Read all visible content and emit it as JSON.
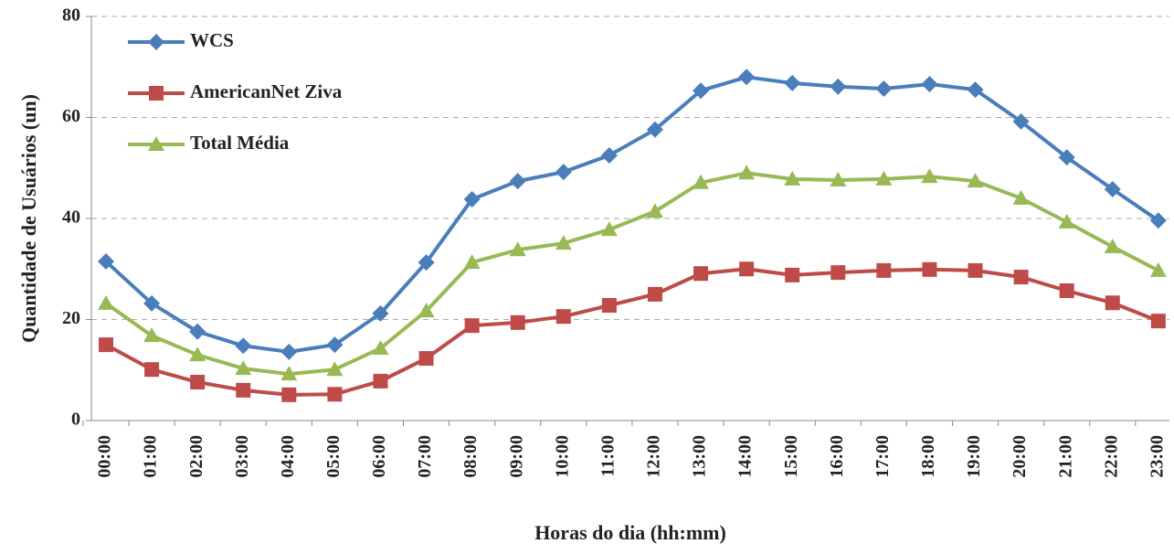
{
  "chart_data": {
    "type": "line",
    "xlabel": "Horas do dia (hh:mm)",
    "ylabel": "Quantidade de Usuários (un)",
    "categories": [
      "00:00",
      "01:00",
      "02:00",
      "03:00",
      "04:00",
      "05:00",
      "06:00",
      "07:00",
      "08:00",
      "09:00",
      "10:00",
      "11:00",
      "12:00",
      "13:00",
      "14:00",
      "15:00",
      "16:00",
      "17:00",
      "18:00",
      "19:00",
      "20:00",
      "21:00",
      "22:00",
      "23:00"
    ],
    "series": [
      {
        "name": "WCS",
        "color": "#4a7ebb",
        "marker": "diamond",
        "values": [
          31.5,
          23.2,
          17.6,
          14.8,
          13.6,
          15,
          21.2,
          31.3,
          43.8,
          47.4,
          49.2,
          52.5,
          57.6,
          65.3,
          68,
          66.8,
          66.1,
          65.7,
          66.6,
          65.5,
          59.2,
          52.1,
          45.8,
          39.6
        ]
      },
      {
        "name": "AmericanNet Ziva",
        "color": "#be4b48",
        "marker": "square",
        "values": [
          15,
          10.1,
          7.6,
          6,
          5.1,
          5.2,
          7.8,
          12.3,
          18.8,
          19.4,
          20.6,
          22.8,
          25,
          29.1,
          30,
          28.8,
          29.3,
          29.7,
          29.9,
          29.7,
          28.4,
          25.7,
          23.3,
          19.7
        ]
      },
      {
        "name": "Total Média",
        "color": "#98b954",
        "marker": "triangle",
        "values": [
          23.2,
          16.8,
          13,
          10.3,
          9.2,
          10.1,
          14.3,
          21.7,
          31.3,
          33.8,
          35.1,
          37.8,
          41.4,
          47.1,
          49,
          47.8,
          47.6,
          47.8,
          48.3,
          47.4,
          44,
          39.3,
          34.4,
          29.7
        ]
      }
    ],
    "ylim": [
      0,
      80
    ],
    "yticks": [
      0,
      20,
      40,
      60,
      80
    ],
    "grid": true,
    "legend": "upper left"
  }
}
